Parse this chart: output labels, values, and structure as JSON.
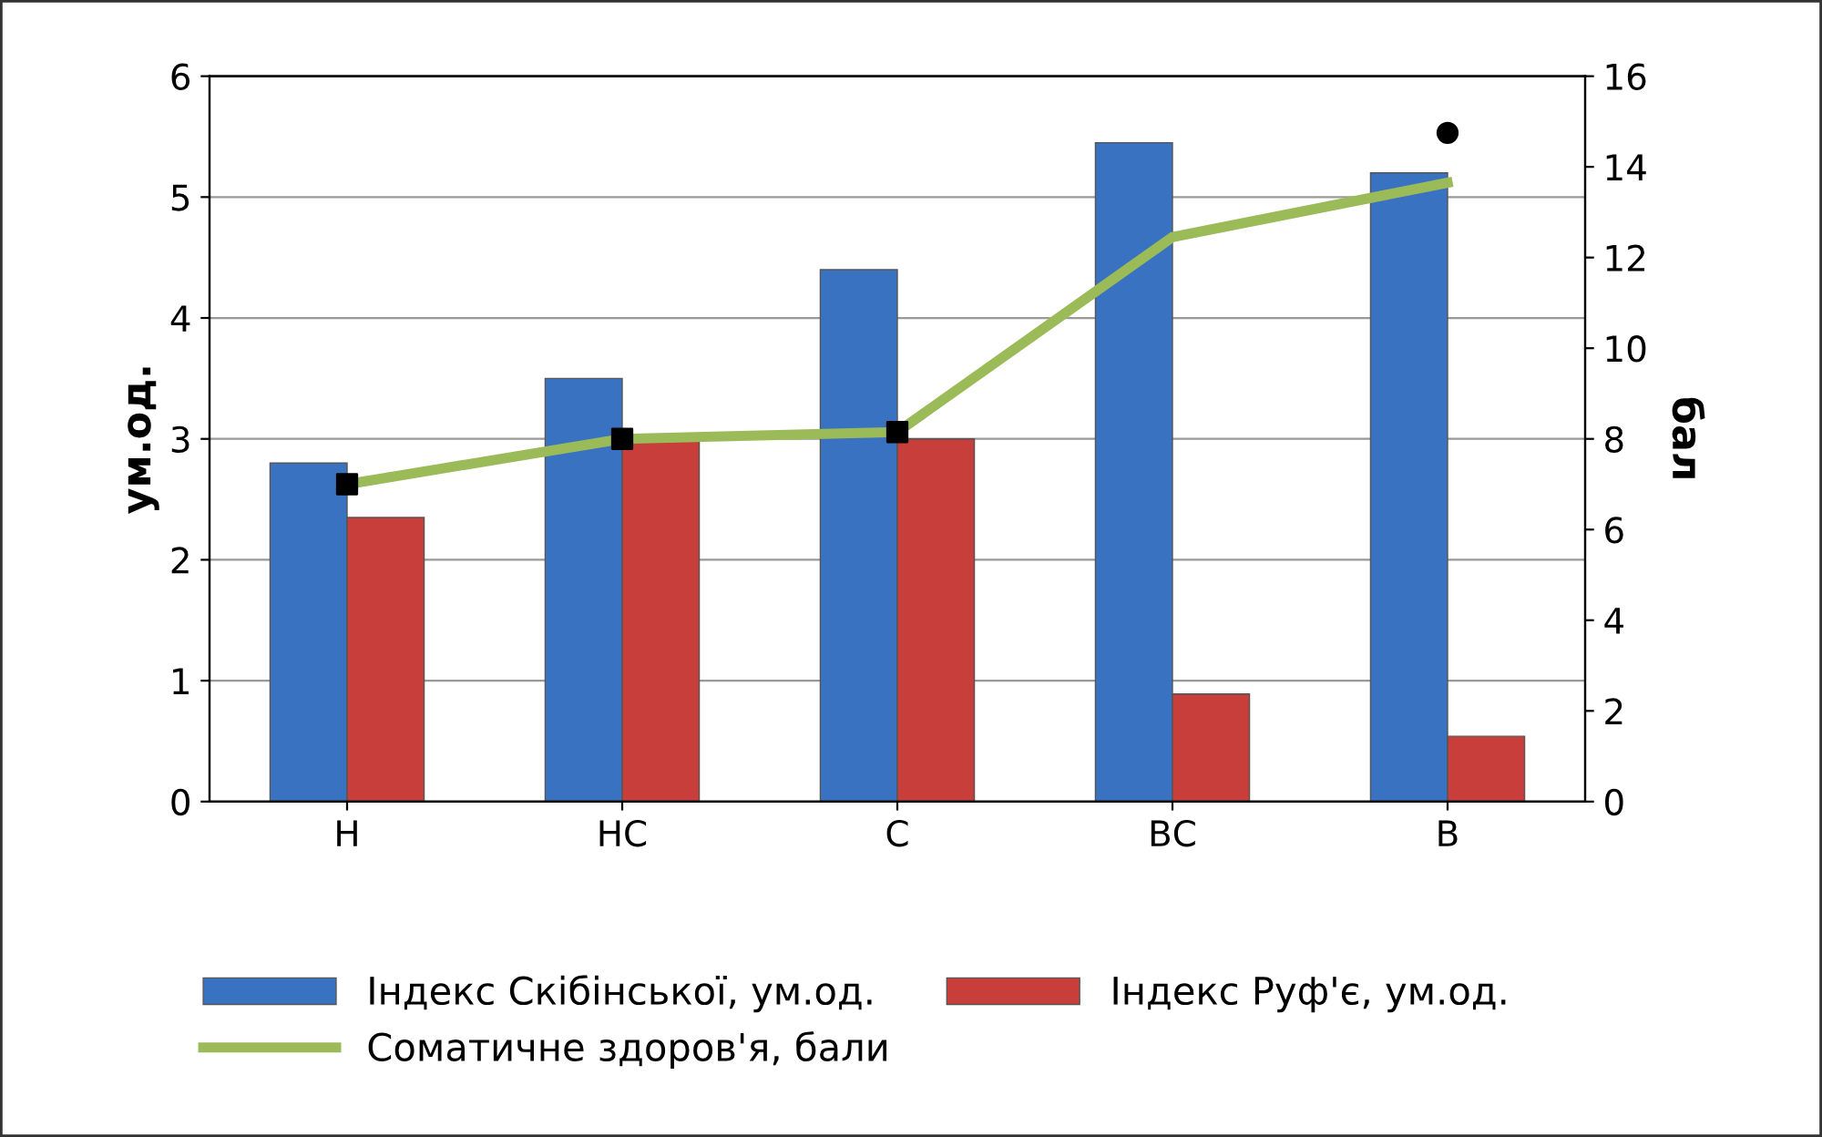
{
  "chart_data": {
    "type": "bar",
    "categories": [
      "Н",
      "НС",
      "С",
      "ВС",
      "В"
    ],
    "ylabel": "ум.од.",
    "y2label": "бал",
    "ylim": [
      0,
      6
    ],
    "yticks": [
      0,
      1,
      2,
      3,
      4,
      5,
      6
    ],
    "y2lim": [
      0,
      16
    ],
    "y2ticks": [
      0,
      2,
      4,
      6,
      8,
      10,
      12,
      14,
      16
    ],
    "grid": "y",
    "legend": "bottom",
    "series": [
      {
        "name": "Індекс Скібінської, ум.од.",
        "color": "#3a72c2",
        "values": [
          2.8,
          3.5,
          4.4,
          5.45,
          5.2
        ]
      },
      {
        "name": "Індекс Руф'є, ум.од.",
        "color": "#c83e3a",
        "values": [
          2.35,
          3.0,
          3.0,
          0.89,
          0.54
        ]
      },
      {
        "name": "Соматичне здоров'я, бали",
        "type": "line",
        "axis": "y2",
        "color": "#9bbb59",
        "values": [
          7.0,
          8.0,
          8.15,
          12.45,
          13.65
        ]
      },
      {
        "type": "scatter",
        "axis": "y2",
        "color": "#000000",
        "marker": "square",
        "values": [
          7.0,
          8.0,
          8.15,
          null,
          null
        ]
      },
      {
        "type": "scatter",
        "axis": "y2",
        "color": "#000000",
        "marker": "circle",
        "values": [
          null,
          null,
          null,
          null,
          14.75
        ]
      }
    ]
  }
}
